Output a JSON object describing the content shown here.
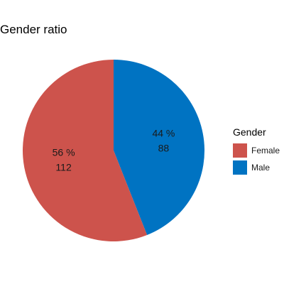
{
  "chart_data": {
    "type": "pie",
    "title": "Gender ratio",
    "legend": {
      "title": "Gender",
      "position": "right"
    },
    "slices": [
      {
        "name": "Female",
        "value": 112,
        "percent_label": "56 %",
        "value_label": "112",
        "color": "#CD534C"
      },
      {
        "name": "Male",
        "value": 88,
        "percent_label": "44 %",
        "value_label": "88",
        "color": "#0073C2"
      }
    ]
  }
}
